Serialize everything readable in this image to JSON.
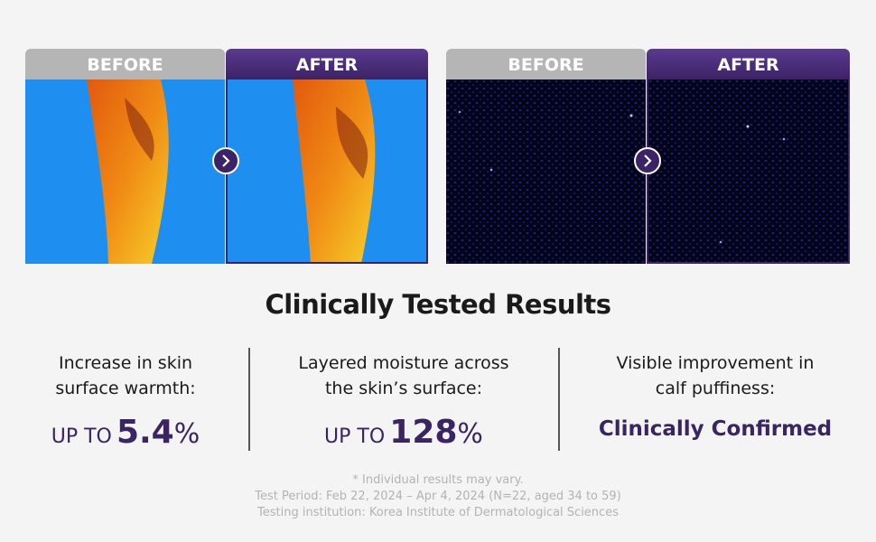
{
  "comparisons": [
    {
      "before_label": "BEFORE",
      "after_label": "AFTER"
    },
    {
      "before_label": "BEFORE",
      "after_label": "AFTER"
    }
  ],
  "heading": "Clinically Tested Results",
  "results": [
    {
      "description": [
        "Increase in skin",
        "surface warmth:"
      ],
      "prefix": "UP TO",
      "value": 5.4,
      "unit": "%"
    },
    {
      "description": [
        "Layered moisture across",
        "the skin’s surface:"
      ],
      "prefix": "UP TO",
      "value": 128,
      "unit": "%"
    },
    {
      "description": [
        "Visible improvement in",
        "calf puffiness:"
      ],
      "highlight": "Clinically Confirmed"
    }
  ],
  "footnotes": [
    "* Individual results may vary.",
    "Test Period: Feb 22, 2024 – Apr 4, 2024 (N=22, aged 34 to 59)",
    "Testing institution: Korea Institute of Dermatological Sciences"
  ]
}
